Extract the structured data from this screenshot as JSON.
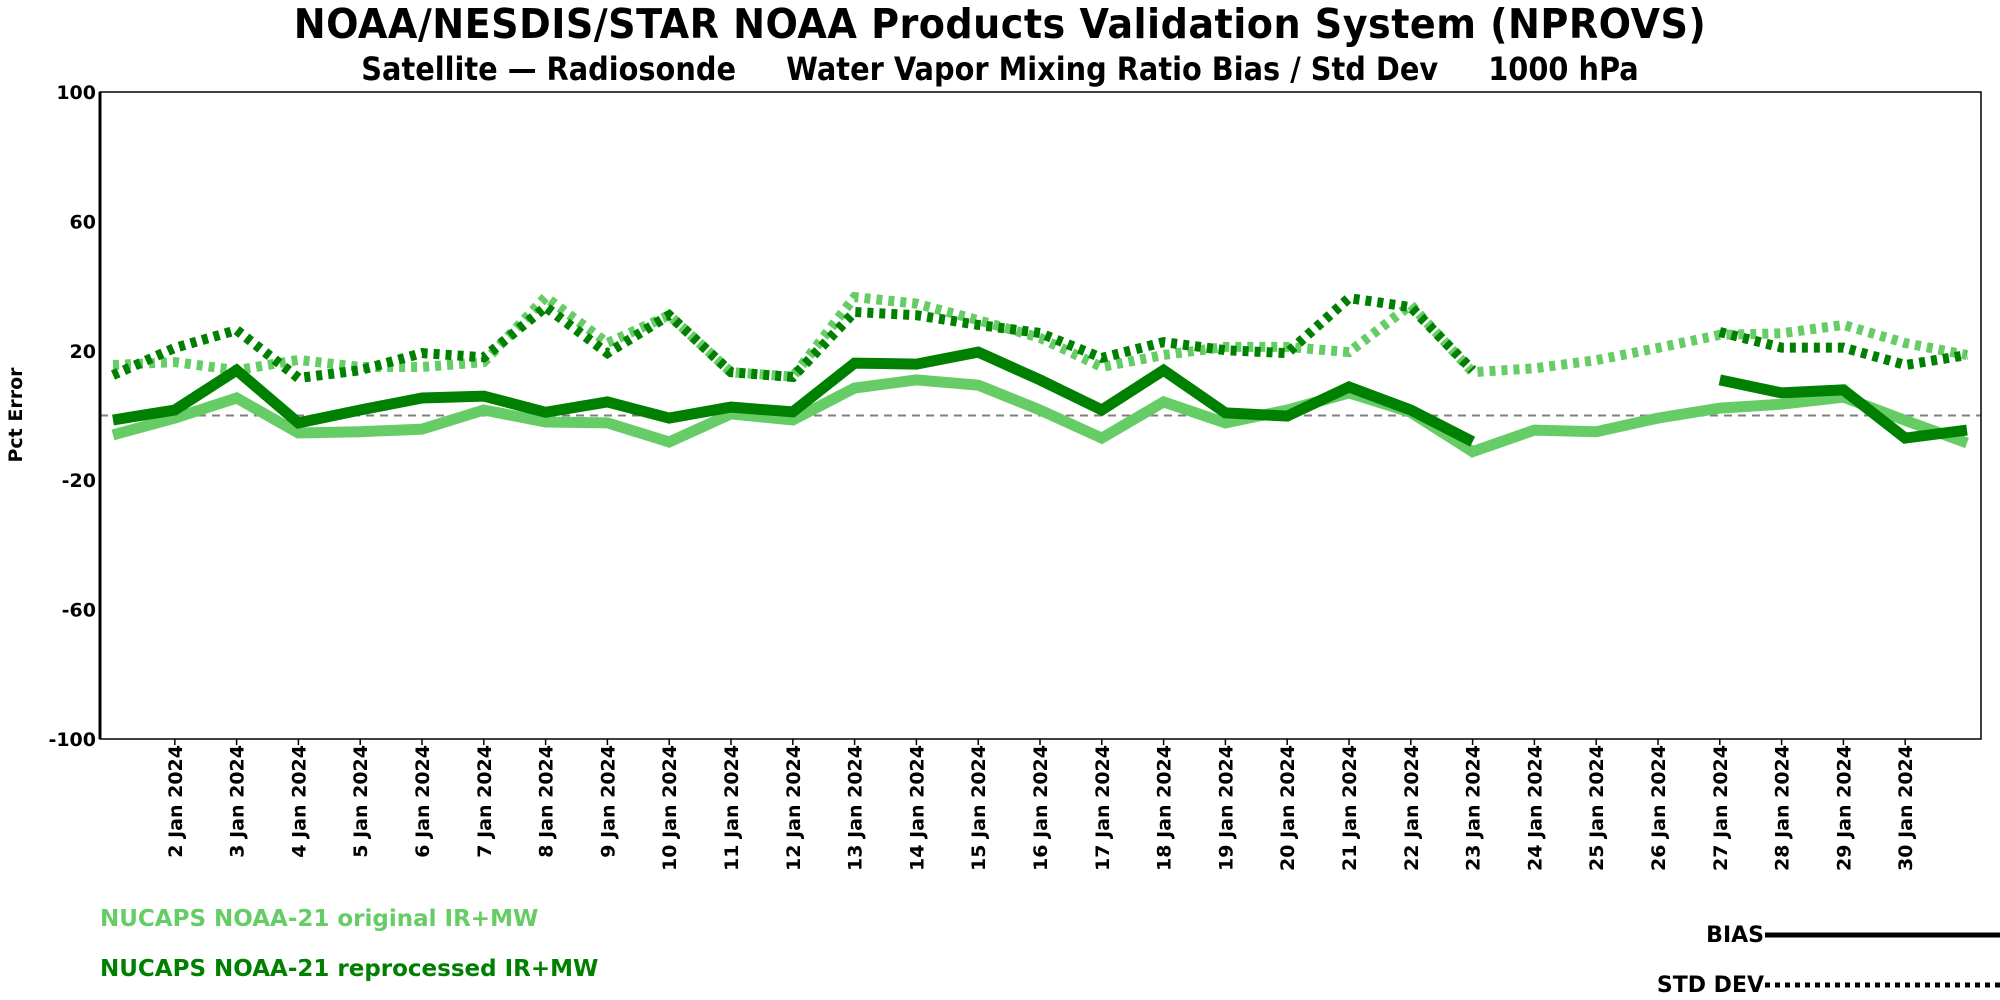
{
  "header": {
    "title": "NOAA/NESDIS/STAR  NOAA Products Validation System (NPROVS)",
    "subtitle": "Satellite — Radiosonde     Water Vapor Mixing Ratio Bias / Std Dev     1000 hPa"
  },
  "legend": {
    "series": [
      {
        "label": "NUCAPS NOAA-21 original IR+MW",
        "color": "#66CC66"
      },
      {
        "label": "NUCAPS NOAA-21 reprocessed IR+MW",
        "color": "#008000"
      }
    ],
    "styles": [
      {
        "label": "BIAS",
        "style": "solid"
      },
      {
        "label": "STD DEV",
        "style": "dotted"
      }
    ]
  },
  "chart_data": {
    "type": "line",
    "title": "NOAA/NESDIS/STAR  NOAA Products Validation System (NPROVS)",
    "subtitle": "Satellite — Radiosonde  Water Vapor Mixing Ratio Bias / Std Dev  1000 hPa",
    "xlabel": "",
    "ylabel": "Pct Error",
    "ylim": [
      -100,
      100
    ],
    "yticks": [
      100,
      60,
      20,
      -20,
      -60,
      -100
    ],
    "reference_line": 0,
    "x": [
      1,
      2,
      3,
      4,
      5,
      6,
      7,
      8,
      9,
      10,
      11,
      12,
      13,
      14,
      15,
      16,
      17,
      18,
      19,
      20,
      21,
      22,
      23,
      24,
      25,
      26,
      27,
      28,
      29,
      30,
      31
    ],
    "xlim": [
      0,
      32
    ],
    "xticks": [
      2,
      3,
      4,
      5,
      6,
      7,
      8,
      9,
      10,
      11,
      12,
      13,
      14,
      15,
      16,
      17,
      18,
      19,
      20,
      21,
      22,
      23,
      24,
      25,
      26,
      27,
      28,
      29,
      30
    ],
    "xtick_labels": [
      "2 Jan 2024",
      "3 Jan 2024",
      "4 Jan 2024",
      "5 Jan 2024",
      "6 Jan 2024",
      "7 Jan 2024",
      "8 Jan 2024",
      "9 Jan 2024",
      "10 Jan 2024",
      "11 Jan 2024",
      "12 Jan 2024",
      "13 Jan 2024",
      "14 Jan 2024",
      "15 Jan 2024",
      "16 Jan 2024",
      "17 Jan 2024",
      "18 Jan 2024",
      "19 Jan 2024",
      "20 Jan 2024",
      "21 Jan 2024",
      "22 Jan 2024",
      "23 Jan 2024",
      "24 Jan 2024",
      "25 Jan 2024",
      "26 Jan 2024",
      "27 Jan 2024",
      "28 Jan 2024",
      "29 Jan 2024",
      "30 Jan 2024"
    ],
    "grid": false,
    "legend_position": "bottom",
    "series": [
      {
        "name": "NUCAPS NOAA-21 original IR+MW STD DEV",
        "color": "#66CC66",
        "style": "dotted",
        "values": [
          15.6,
          16.5,
          14,
          17.2,
          15,
          15,
          16.5,
          36.6,
          22.4,
          31,
          13.4,
          12,
          36.6,
          34.6,
          29.5,
          24,
          15,
          18.7,
          21.2,
          21.2,
          19.6,
          34.2,
          13.4,
          14.6,
          17.1,
          20.9,
          24.9,
          25.4,
          28,
          22.4,
          18.7
        ]
      },
      {
        "name": "NUCAPS NOAA-21 reprocessed IR+MW STD DEV",
        "color": "#008000",
        "style": "dotted",
        "values": [
          12.5,
          20.9,
          26.4,
          11.6,
          14,
          19.3,
          18,
          33.5,
          19.3,
          31,
          13.4,
          11.9,
          32,
          31,
          28,
          25.5,
          17.8,
          22.7,
          20.2,
          19.3,
          36.3,
          33.5,
          14,
          null,
          null,
          null,
          25.8,
          21,
          21,
          15.6,
          18.7
        ]
      },
      {
        "name": "NUCAPS NOAA-21 original IR+MW BIAS",
        "color": "#66CC66",
        "style": "solid",
        "values": [
          -6,
          -0.8,
          5.4,
          -5.4,
          -5,
          -4.2,
          1.7,
          -2,
          -2.3,
          -8.2,
          0.5,
          -1.4,
          8.5,
          11,
          9.4,
          1.7,
          -7,
          4.2,
          -2.3,
          1.7,
          7,
          1,
          -11.2,
          -4.5,
          -5,
          -0.8,
          2.3,
          3.5,
          5.7,
          -1.5,
          -8.5
        ]
      },
      {
        "name": "NUCAPS NOAA-21 reprocessed IR+MW BIAS",
        "color": "#008000",
        "style": "solid",
        "values": [
          -1.4,
          1.7,
          14,
          -2.3,
          1.7,
          5.4,
          6,
          1,
          4.2,
          -0.8,
          2.6,
          1.1,
          16.2,
          15.9,
          19.6,
          11,
          1.7,
          14,
          0.8,
          -0.2,
          8.8,
          1.7,
          -8.1,
          null,
          null,
          null,
          11,
          7,
          7.9,
          -7,
          -4.5
        ]
      }
    ]
  }
}
